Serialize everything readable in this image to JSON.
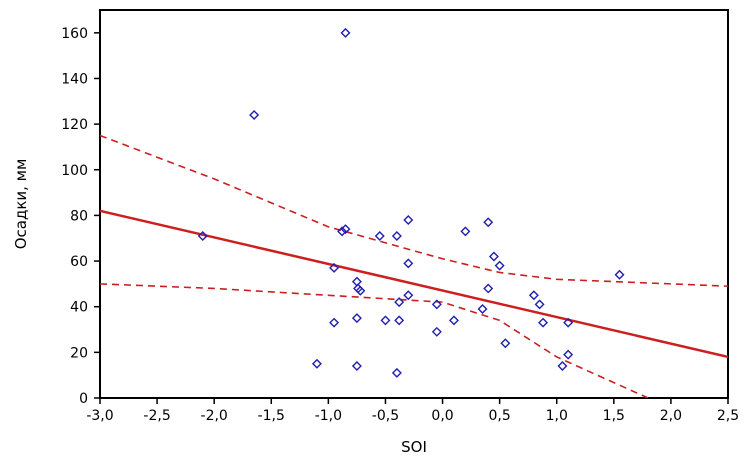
{
  "chart_data": {
    "type": "scatter",
    "title": "",
    "xlabel": "SOI",
    "ylabel": "Осадки, мм",
    "xlim": [
      -3.0,
      2.5
    ],
    "ylim": [
      0,
      170
    ],
    "x_ticks": [
      "-3,0",
      "-2,5",
      "-2,0",
      "-1,5",
      "-1,0",
      "-0,5",
      "0,0",
      "0,5",
      "1,0",
      "1,5",
      "2,0",
      "2,5"
    ],
    "y_ticks": [
      "0",
      "20",
      "40",
      "60",
      "80",
      "100",
      "120",
      "140",
      "160"
    ],
    "grid": false,
    "colors": {
      "points": "#1f1fb0",
      "line": "#cc1f1f"
    },
    "series": [
      {
        "kind": "points",
        "points": [
          [
            -2.1,
            71
          ],
          [
            -1.65,
            124
          ],
          [
            -0.85,
            160
          ],
          [
            -1.1,
            15
          ],
          [
            -0.95,
            33
          ],
          [
            -0.95,
            57
          ],
          [
            -0.88,
            73
          ],
          [
            -0.85,
            74
          ],
          [
            -0.75,
            51
          ],
          [
            -0.74,
            48
          ],
          [
            -0.72,
            47
          ],
          [
            -0.75,
            35
          ],
          [
            -0.75,
            14
          ],
          [
            -0.55,
            71
          ],
          [
            -0.5,
            34
          ],
          [
            -0.4,
            71
          ],
          [
            -0.38,
            42
          ],
          [
            -0.38,
            34
          ],
          [
            -0.4,
            11
          ],
          [
            -0.3,
            78
          ],
          [
            -0.3,
            59
          ],
          [
            -0.3,
            45
          ],
          [
            -0.05,
            41
          ],
          [
            -0.05,
            29
          ],
          [
            0.1,
            34
          ],
          [
            0.2,
            73
          ],
          [
            0.35,
            39
          ],
          [
            0.4,
            77
          ],
          [
            0.4,
            48
          ],
          [
            0.45,
            62
          ],
          [
            0.5,
            58
          ],
          [
            0.55,
            24
          ],
          [
            0.8,
            45
          ],
          [
            0.85,
            41
          ],
          [
            0.88,
            33
          ],
          [
            1.05,
            14
          ],
          [
            1.1,
            33
          ],
          [
            1.1,
            19
          ],
          [
            1.55,
            54
          ]
        ]
      },
      {
        "kind": "line",
        "style": "solid",
        "points": [
          [
            -3.0,
            82
          ],
          [
            2.5,
            18
          ]
        ]
      },
      {
        "kind": "line",
        "style": "dashed",
        "points": [
          [
            -3.0,
            115
          ],
          [
            -2.0,
            96
          ],
          [
            -1.0,
            75
          ],
          [
            0.0,
            61
          ],
          [
            0.5,
            55
          ],
          [
            1.0,
            52
          ],
          [
            2.5,
            49
          ]
        ]
      },
      {
        "kind": "line",
        "style": "dashed",
        "points": [
          [
            -3.0,
            50
          ],
          [
            -2.0,
            48
          ],
          [
            -1.0,
            45
          ],
          [
            0.0,
            42
          ],
          [
            0.5,
            34
          ],
          [
            1.0,
            18
          ],
          [
            1.8,
            0
          ]
        ]
      }
    ]
  }
}
